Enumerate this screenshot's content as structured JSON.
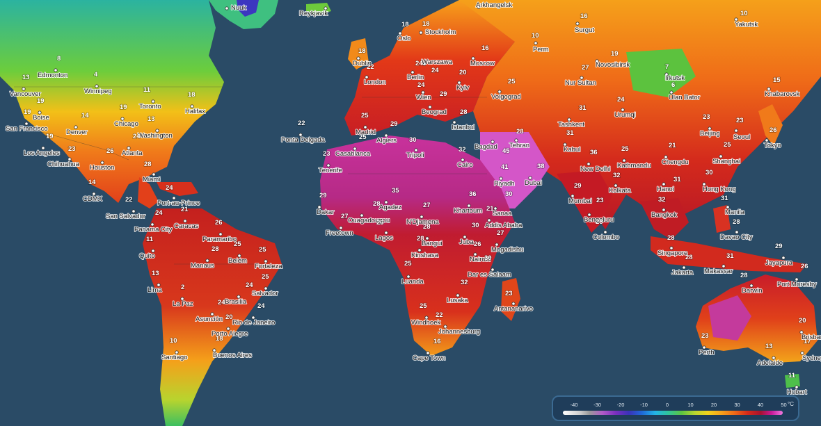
{
  "legend": {
    "unit": "°C",
    "ticks": [
      "-40",
      "-30",
      "-20",
      "-10",
      "0",
      "10",
      "20",
      "30",
      "40",
      "50"
    ]
  },
  "cities": [
    {
      "name": "Nuuk",
      "value": ""
    },
    {
      "name": "Reykjavík",
      "value": ""
    },
    {
      "name": "Arkhangelsk",
      "value": ""
    },
    {
      "name": "Yakutsk",
      "value": "10"
    },
    {
      "name": "Surgut",
      "value": "16"
    },
    {
      "name": "Perm",
      "value": "10"
    },
    {
      "name": "Oslo",
      "value": "18"
    },
    {
      "name": "Stockholm",
      "value": "18"
    },
    {
      "name": "Moscow",
      "value": "16"
    },
    {
      "name": "Novosibirsk",
      "value": "19"
    },
    {
      "name": "Irkutsk",
      "value": "7"
    },
    {
      "name": "Ulan Bator",
      "value": "6"
    },
    {
      "name": "Khabarovsk",
      "value": "15"
    },
    {
      "name": "Dublin",
      "value": "18"
    },
    {
      "name": "London",
      "value": "22"
    },
    {
      "name": "Berlin",
      "value": "24"
    },
    {
      "name": "Warszawa",
      "value": "24"
    },
    {
      "name": "Wien",
      "value": "24"
    },
    {
      "name": "Kyiv",
      "value": "20"
    },
    {
      "name": "Volgograd",
      "value": "25"
    },
    {
      "name": "Nur Sultan",
      "value": "27"
    },
    {
      "name": "Madrid",
      "value": "25"
    },
    {
      "name": "Beograd",
      "value": "29"
    },
    {
      "name": "Istanbul",
      "value": "28"
    },
    {
      "name": "Urumqi",
      "value": "24"
    },
    {
      "name": "Tashkent",
      "value": "31"
    },
    {
      "name": "Beijing",
      "value": "23"
    },
    {
      "name": "Seoul",
      "value": "23"
    },
    {
      "name": "Tokyo",
      "value": "26"
    },
    {
      "name": "Algiers",
      "value": "29"
    },
    {
      "name": "Tripoli",
      "value": "30"
    },
    {
      "name": "Casablanca",
      "value": "25"
    },
    {
      "name": "Cairo",
      "value": "32"
    },
    {
      "name": "Bagdad",
      "value": "45"
    },
    {
      "name": "Tehran",
      "value": "28"
    },
    {
      "name": "Kabul",
      "value": "31"
    },
    {
      "name": "New Delhi",
      "value": "36"
    },
    {
      "name": "Kathmandu",
      "value": "25"
    },
    {
      "name": "Chengdu",
      "value": "21"
    },
    {
      "name": "Shanghai",
      "value": "25"
    },
    {
      "name": "Riyadh",
      "value": "41"
    },
    {
      "name": "Dubai",
      "value": "38"
    },
    {
      "name": "Hong Kong",
      "value": "30"
    },
    {
      "name": "Hanoi",
      "value": "31"
    },
    {
      "name": "Kolkata",
      "value": "32"
    },
    {
      "name": "Mumbai",
      "value": "29"
    },
    {
      "name": "Bengaluru",
      "value": "23"
    },
    {
      "name": "Colombo",
      "value": "28"
    },
    {
      "name": "Bangkok",
      "value": "32"
    },
    {
      "name": "Manila",
      "value": "31"
    },
    {
      "name": "Davao City",
      "value": "28"
    },
    {
      "name": "Singapore",
      "value": "28"
    },
    {
      "name": "Jakarta",
      "value": "28"
    },
    {
      "name": "Makassar",
      "value": "31"
    },
    {
      "name": "Jayapura",
      "value": "29"
    },
    {
      "name": "Port Moresby",
      "value": "26"
    },
    {
      "name": "Darwin",
      "value": "28"
    },
    {
      "name": "Perth",
      "value": "23"
    },
    {
      "name": "Adelaide",
      "value": "13"
    },
    {
      "name": "Brisbane",
      "value": "20"
    },
    {
      "name": "Sydney",
      "value": "17"
    },
    {
      "name": "Hobart",
      "value": "11"
    },
    {
      "name": "Ponta Delgada",
      "value": "22"
    },
    {
      "name": "Tenerife",
      "value": "23"
    },
    {
      "name": "Dakar",
      "value": "29"
    },
    {
      "name": "Freetown",
      "value": "27"
    },
    {
      "name": "Agadez",
      "value": "35"
    },
    {
      "name": "Ouagadougou",
      "value": "28"
    },
    {
      "name": "Lagos",
      "value": "26"
    },
    {
      "name": "N'Djamena",
      "value": "27"
    },
    {
      "name": "Khartoum",
      "value": "36"
    },
    {
      "name": "Sanaa",
      "value": "30"
    },
    {
      "name": "Addis Ababa",
      "value": "21"
    },
    {
      "name": "Bangui",
      "value": "28"
    },
    {
      "name": "Juba",
      "value": "30"
    },
    {
      "name": "Mogadishu",
      "value": "27"
    },
    {
      "name": "Nairobi",
      "value": "26"
    },
    {
      "name": "Kinshasa",
      "value": "28"
    },
    {
      "name": "Dar es Salaam",
      "value": "30"
    },
    {
      "name": "Luanda",
      "value": "25"
    },
    {
      "name": "Lusaka",
      "value": "32"
    },
    {
      "name": "Antananarivo",
      "value": "23"
    },
    {
      "name": "Windhoek",
      "value": "25"
    },
    {
      "name": "Johannesburg",
      "value": "22"
    },
    {
      "name": "Cape Town",
      "value": "16"
    },
    {
      "name": "Edmonton",
      "value": "8"
    },
    {
      "name": "Vancouver",
      "value": "13"
    },
    {
      "name": "Winnipeg",
      "value": "4"
    },
    {
      "name": "Toronto",
      "value": "11"
    },
    {
      "name": "Halifax",
      "value": "18"
    },
    {
      "name": "Boise",
      "value": "19"
    },
    {
      "name": "San Francisco",
      "value": "19"
    },
    {
      "name": "Denver",
      "value": "14"
    },
    {
      "name": "Chicago",
      "value": "19"
    },
    {
      "name": "Washington",
      "value": "13"
    },
    {
      "name": "Los Angeles",
      "value": "19"
    },
    {
      "name": "Atlanta",
      "value": "24"
    },
    {
      "name": "Chihuahua",
      "value": "23"
    },
    {
      "name": "Houston",
      "value": "26"
    },
    {
      "name": "Miami",
      "value": "28"
    },
    {
      "name": "CDMX",
      "value": "14"
    },
    {
      "name": "Port-au-Prince",
      "value": "24"
    },
    {
      "name": "San Salvador",
      "value": "22"
    },
    {
      "name": "Panama City",
      "value": "24"
    },
    {
      "name": "Caracas",
      "value": "21"
    },
    {
      "name": "Paramaribo",
      "value": "26"
    },
    {
      "name": "Quito",
      "value": "11"
    },
    {
      "name": "Manaus",
      "value": "28"
    },
    {
      "name": "Belém",
      "value": "25"
    },
    {
      "name": "Fortaleza",
      "value": "25"
    },
    {
      "name": "Lima",
      "value": "13"
    },
    {
      "name": "Salvador",
      "value": "25"
    },
    {
      "name": "La Paz",
      "value": "2"
    },
    {
      "name": "Brasilia",
      "value": "24"
    },
    {
      "name": "Asunción",
      "value": "24"
    },
    {
      "name": "Rio de Janeiro",
      "value": "24"
    },
    {
      "name": "Porto Alegre",
      "value": "20"
    },
    {
      "name": "Santiago",
      "value": "10"
    },
    {
      "name": "Buenos Aires",
      "value": "18"
    }
  ]
}
